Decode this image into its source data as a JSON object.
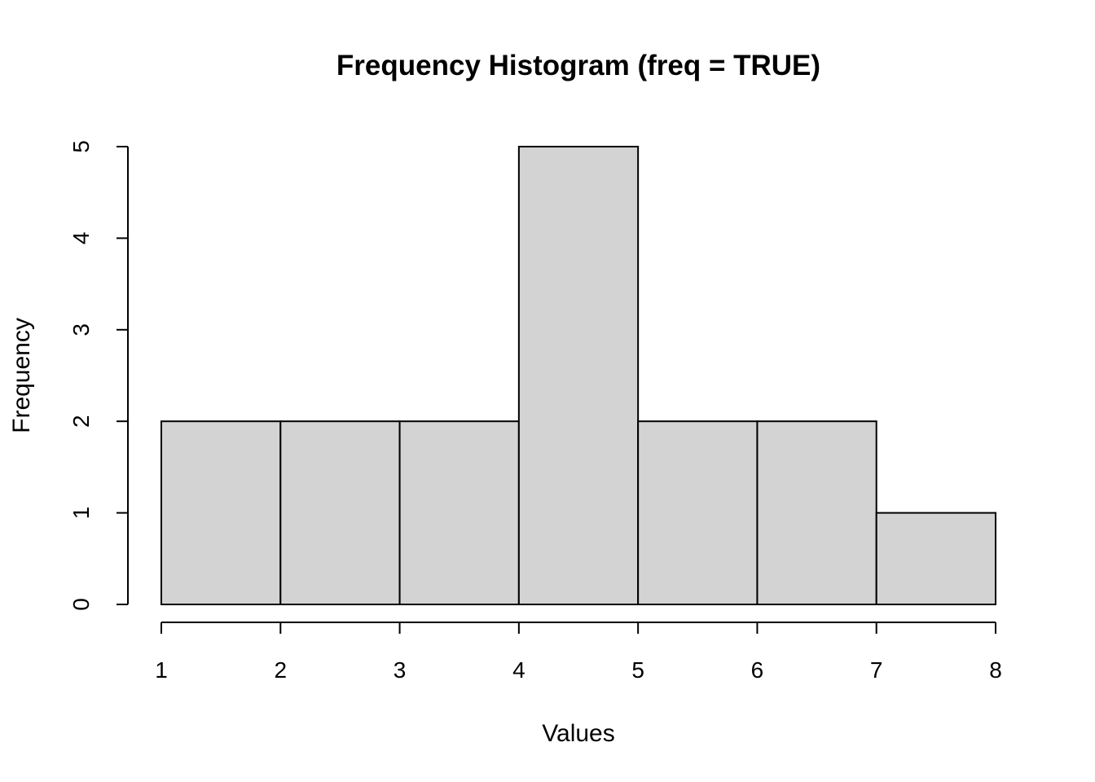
{
  "chart_data": {
    "type": "bar",
    "title": "Frequency Histogram (freq = TRUE)",
    "xlabel": "Values",
    "ylabel": "Frequency",
    "bins": [
      [
        1,
        2
      ],
      [
        2,
        3
      ],
      [
        3,
        4
      ],
      [
        4,
        5
      ],
      [
        5,
        6
      ],
      [
        6,
        7
      ],
      [
        7,
        8
      ]
    ],
    "values": [
      2,
      2,
      2,
      5,
      2,
      2,
      1
    ],
    "xlim": [
      1,
      8
    ],
    "ylim": [
      0,
      5
    ],
    "x_ticks": [
      "1",
      "2",
      "3",
      "4",
      "5",
      "6",
      "7",
      "8"
    ],
    "y_ticks": [
      "0",
      "1",
      "2",
      "3",
      "4",
      "5"
    ],
    "bar_color": "#d3d3d3",
    "grid": false,
    "legend": "none"
  }
}
